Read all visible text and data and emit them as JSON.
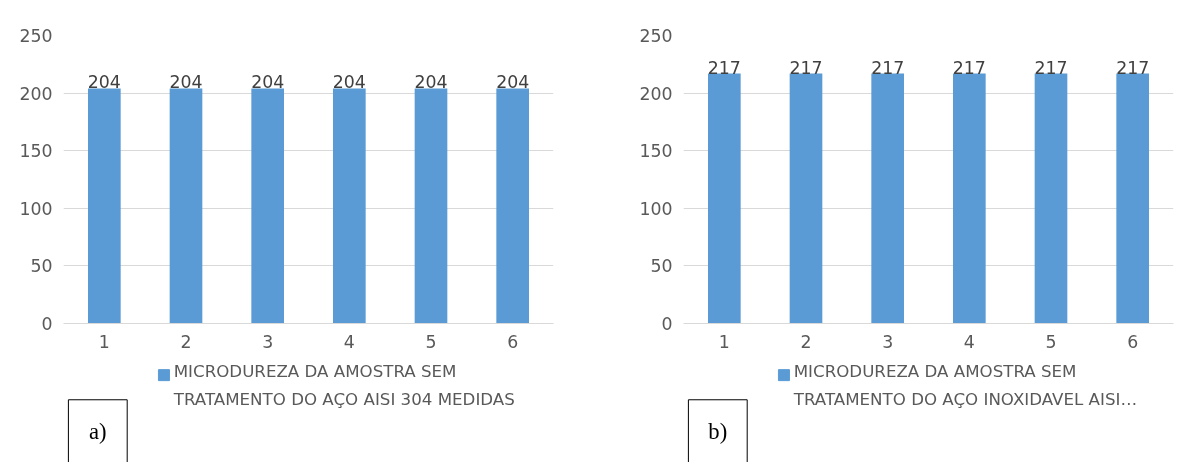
{
  "chart_data": [
    {
      "type": "bar",
      "categories": [
        "1",
        "2",
        "3",
        "4",
        "5",
        "6"
      ],
      "series": [
        {
          "name": "MICRODUREZA DA AMOSTRA SEM TRATAMENTO DO AÇO AISI 304 MEDIDAS",
          "color": "#5b9bd5",
          "values": [
            204,
            204,
            204,
            204,
            204,
            204
          ]
        }
      ],
      "ylim": [
        0,
        250
      ],
      "yticks": [
        0,
        50,
        100,
        150,
        200,
        250
      ],
      "grid": "y",
      "legend": "bottom",
      "data_labels": true,
      "annotations": [
        "a)"
      ]
    },
    {
      "type": "bar",
      "categories": [
        "1",
        "2",
        "3",
        "4",
        "5",
        "6"
      ],
      "series": [
        {
          "name": "MICRODUREZA DA AMOSTRA SEM TRATAMENTO DO AÇO INOXIDAVEL AISI…",
          "color": "#5b9bd5",
          "values": [
            217,
            217,
            217,
            217,
            217,
            217
          ]
        }
      ],
      "ylim": [
        0,
        250
      ],
      "yticks": [
        0,
        50,
        100,
        150,
        200,
        250
      ],
      "grid": "y",
      "legend": "bottom",
      "data_labels": true,
      "annotations": [
        "b)"
      ]
    }
  ]
}
